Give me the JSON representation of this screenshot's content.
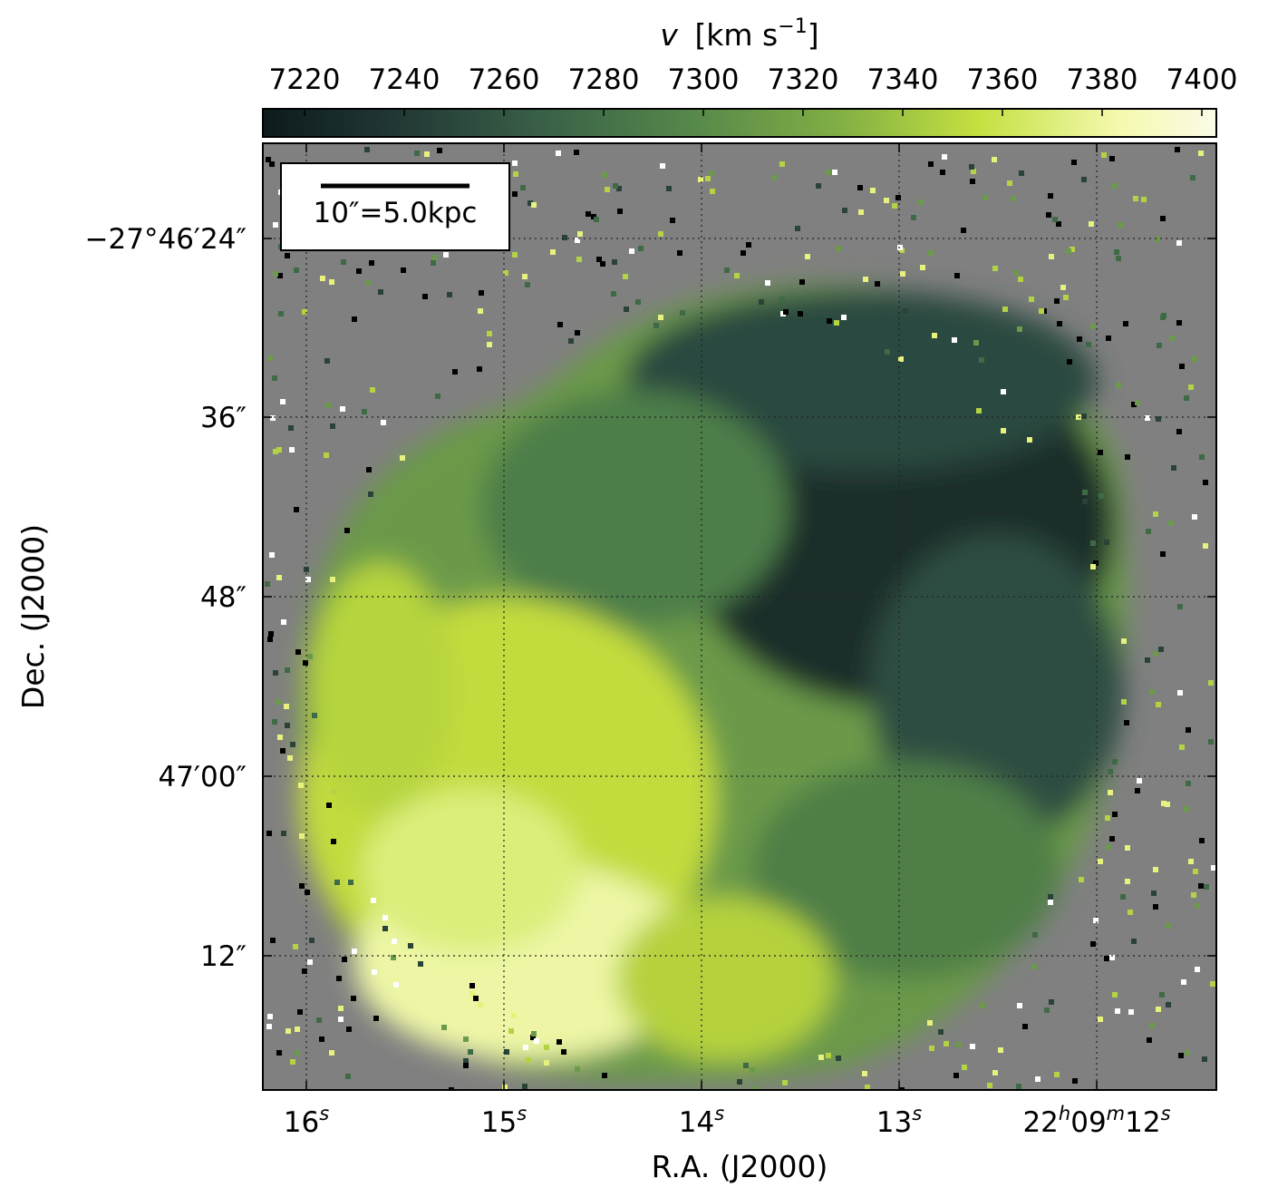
{
  "chart_data": {
    "type": "heatmap",
    "colorbar": {
      "label_v": "v",
      "label_units": "[km s",
      "label_exp": "−1",
      "label_close": "]",
      "range": [
        7210,
        7400
      ],
      "ticks": [
        "7220",
        "7240",
        "7260",
        "7280",
        "7300",
        "7320",
        "7340",
        "7360",
        "7380",
        "7400"
      ],
      "colormap": [
        "#0d1a1c",
        "#233a37",
        "#3a6248",
        "#56884a",
        "#80ad44",
        "#c4e040",
        "#f5f9b0",
        "#fbfbe6"
      ]
    },
    "xlabel": "R.A. (J2000)",
    "ylabel": "Dec. (J2000)",
    "x_ticks": [
      {
        "main": "16",
        "sup": "s"
      },
      {
        "main": "15",
        "sup": "s"
      },
      {
        "main": "14",
        "sup": "s"
      },
      {
        "main": "13",
        "sup": "s"
      },
      {
        "main": "22",
        "sup": "h",
        "main2": "09",
        "sup2": "m",
        "main3": "12",
        "sup3": "s"
      }
    ],
    "y_ticks": [
      "−27°46′24″",
      "36″",
      "48″",
      "47′00″",
      "12″"
    ],
    "scale_bar": "10″=5.0kpc",
    "grid": true,
    "background_color": "#808080",
    "velocity_field": {
      "description_values": "velocity increases from upper-right (~7215 km/s) to lower-left (~7390 km/s)",
      "upper_right_min": 7215,
      "lower_left_max": 7390
    }
  }
}
